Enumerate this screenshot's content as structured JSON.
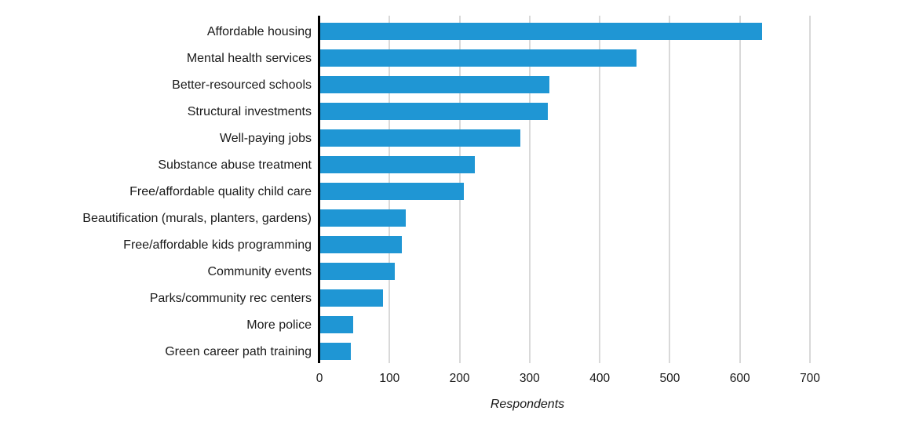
{
  "chart_data": {
    "type": "bar",
    "orientation": "horizontal",
    "title": "",
    "xlabel": "Respondents",
    "ylabel": "",
    "xlim": [
      0,
      700
    ],
    "xticks": [
      0,
      100,
      200,
      300,
      400,
      500,
      600,
      700
    ],
    "grid": true,
    "legend": false,
    "categories": [
      "Affordable housing",
      "Mental health services",
      "Better-resourced schools",
      "Structural investments",
      "Well-paying jobs",
      "Substance abuse treatment",
      "Free/affordable quality child care",
      "Beautification (murals, planters, gardens)",
      "Free/affordable kids programming",
      "Community events",
      "Parks/community rec centers",
      "More police",
      "Green career path training"
    ],
    "values": [
      630,
      451,
      327,
      325,
      286,
      221,
      205,
      122,
      116,
      106,
      90,
      47,
      44
    ],
    "colors": {
      "bar": "#1F96D4",
      "gridline": "#D9D9D9",
      "axis_line": "#000000",
      "text": "#1A1A1A"
    }
  }
}
